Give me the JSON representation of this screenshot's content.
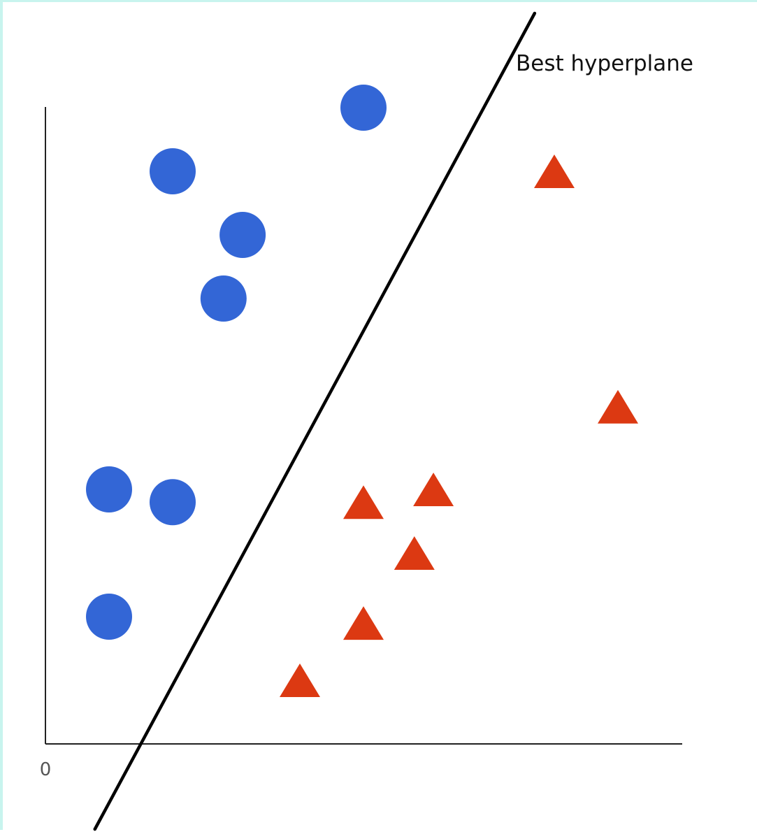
{
  "colors": {
    "class_a": "#3366d6",
    "class_b": "#dc3912",
    "axis": "#222222",
    "hyperplane": "#000000",
    "border": "#c8f4ee"
  },
  "chart_data": {
    "type": "scatter",
    "title": "",
    "xlabel": "",
    "ylabel": "",
    "xlim": [
      0,
      100
    ],
    "ylim": [
      0,
      100
    ],
    "grid": false,
    "legend": "none",
    "origin_label": "0",
    "series": [
      {
        "marker": "circle",
        "color": "#3366d6",
        "points": [
          {
            "x": 50,
            "y": 100
          },
          {
            "x": 20,
            "y": 90
          },
          {
            "x": 31,
            "y": 80
          },
          {
            "x": 28,
            "y": 70
          },
          {
            "x": 10,
            "y": 40
          },
          {
            "x": 20,
            "y": 38
          },
          {
            "x": 10,
            "y": 20
          }
        ]
      },
      {
        "marker": "triangle",
        "color": "#dc3912",
        "points": [
          {
            "x": 80,
            "y": 90
          },
          {
            "x": 90,
            "y": 53
          },
          {
            "x": 61,
            "y": 40
          },
          {
            "x": 50,
            "y": 38
          },
          {
            "x": 58,
            "y": 30
          },
          {
            "x": 50,
            "y": 19
          },
          {
            "x": 40,
            "y": 10
          }
        ]
      }
    ],
    "annotations": [
      {
        "type": "line",
        "label": "Best hyperplane",
        "from": {
          "x": 15,
          "y": 0
        },
        "to": {
          "x": 77,
          "y": 115
        }
      }
    ]
  }
}
